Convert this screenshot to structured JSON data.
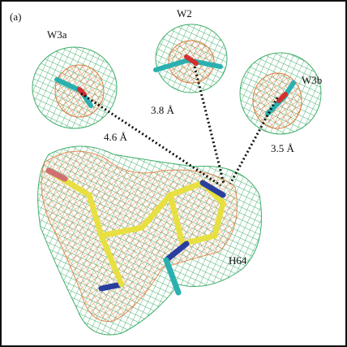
{
  "panel_label": "(a)",
  "waters": [
    {
      "label": "W3a"
    },
    {
      "label": "W2"
    },
    {
      "label": "W3b"
    }
  ],
  "distances": [
    "4.6 Å",
    "3.8 Å",
    "3.5 Å"
  ],
  "residue": {
    "label": "H64"
  }
}
